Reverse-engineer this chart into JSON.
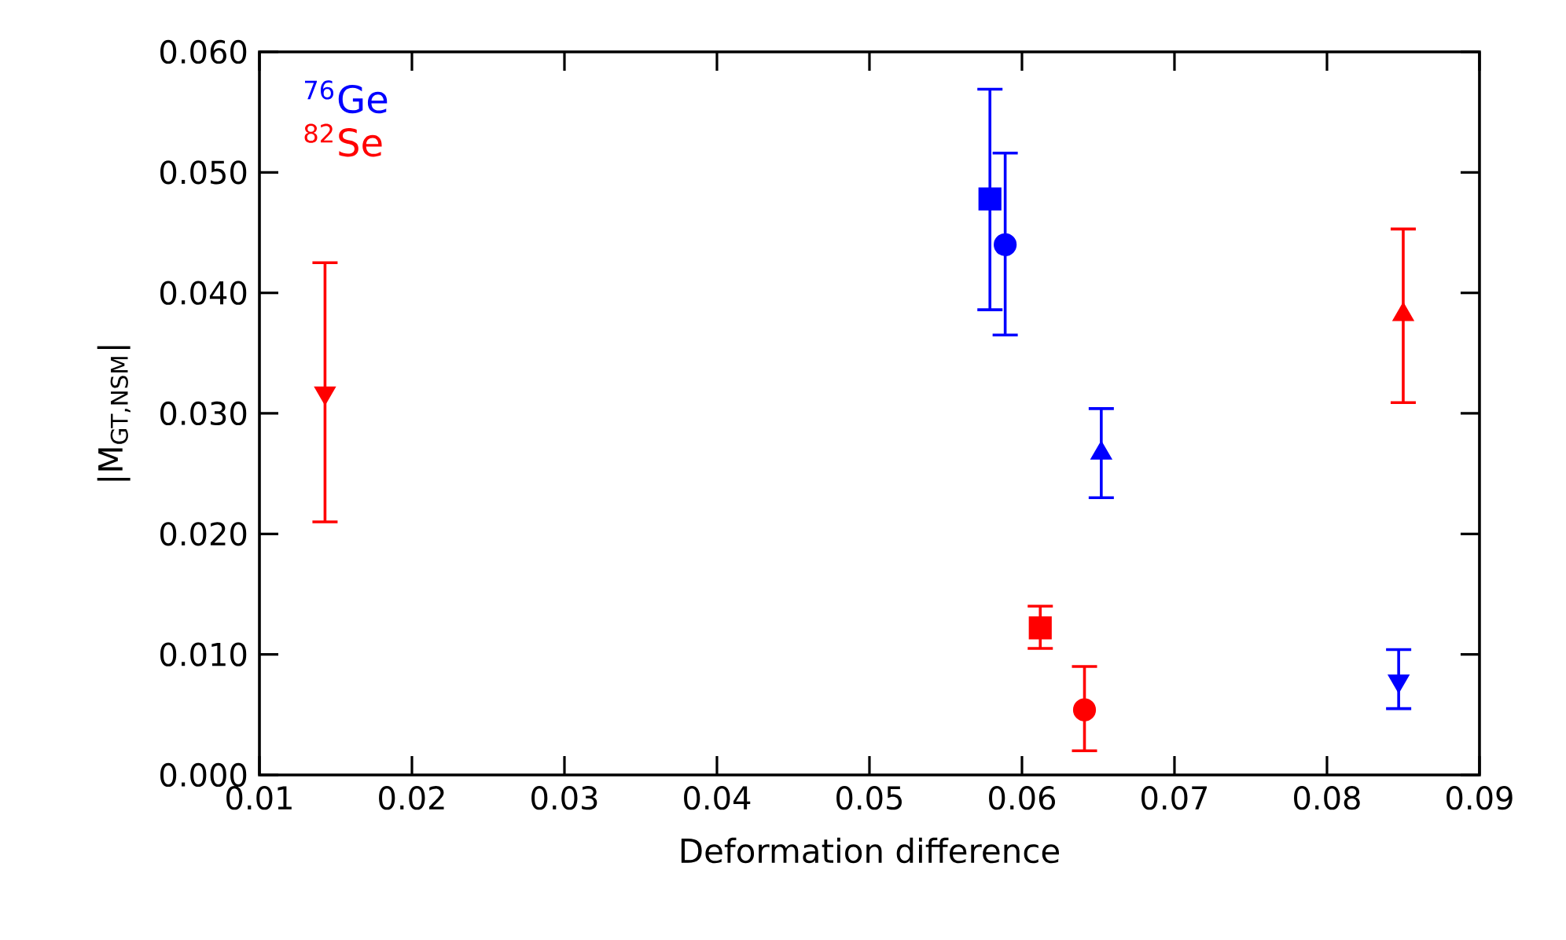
{
  "chart_data": {
    "type": "scatter",
    "xlabel": "Deformation difference",
    "ylabel": "|M$_{GT,NSM}$|",
    "xlim": [
      0.01,
      0.09
    ],
    "xticks": [
      0.01,
      0.02,
      0.03,
      0.04,
      0.05,
      0.06,
      0.07,
      0.08,
      0.09
    ],
    "ylim": [
      0,
      0.06
    ],
    "yticks": [
      {
        "value": 0,
        "label": "0.000"
      },
      {
        "value": 0.01,
        "label": "0.010"
      },
      {
        "value": 0.02,
        "label": "0.020"
      },
      {
        "value": 0.03,
        "label": "0.030"
      },
      {
        "value": 0.04,
        "label": "0.040"
      },
      {
        "value": 0.05,
        "label": "0.050"
      },
      {
        "value": 0.06,
        "label": "0.060"
      }
    ],
    "legend": "top left",
    "grid": false,
    "series": [
      {
        "name": "$^{76}$Ge",
        "color": "#0000ff",
        "marker": "square",
        "x": [
          0.0579
        ],
        "values": [
          0.0478
        ],
        "errors": [
          [
            0.0386,
            0.0569
          ]
        ]
      },
      {
        "name": "$^{82}$Se",
        "color": "#ff0000",
        "marker": "triangle-down",
        "x": [
          0.0143
        ],
        "values": [
          0.0317
        ],
        "errors": [
          [
            0.021,
            0.0425
          ]
        ]
      },
      {
        "color": "#0000ff",
        "marker": "circle",
        "x": [
          0.0589
        ],
        "values": [
          0.044
        ],
        "errors": [
          [
            0.0365,
            0.0516
          ]
        ]
      },
      {
        "color": "#0000ff",
        "marker": "triangle",
        "x": [
          0.0652
        ],
        "values": [
          0.0267
        ],
        "errors": [
          [
            0.023,
            0.0304
          ]
        ]
      },
      {
        "color": "#0000ff",
        "marker": "triangle-down",
        "x": [
          0.0847
        ],
        "values": [
          0.0078
        ],
        "errors": [
          [
            0.0055,
            0.0104
          ]
        ]
      },
      {
        "color": "#ff0000",
        "marker": "square",
        "x": [
          0.0612
        ],
        "values": [
          0.0122
        ],
        "errors": [
          [
            0.0105,
            0.014
          ]
        ]
      },
      {
        "color": "#ff0000",
        "marker": "circle",
        "x": [
          0.0641
        ],
        "values": [
          0.0054
        ],
        "errors": [
          [
            0.002,
            0.009
          ]
        ]
      },
      {
        "color": "#ff0000",
        "marker": "triangle",
        "x": [
          0.085
        ],
        "values": [
          0.0382
        ],
        "errors": [
          [
            0.0309,
            0.0453
          ]
        ]
      }
    ]
  }
}
